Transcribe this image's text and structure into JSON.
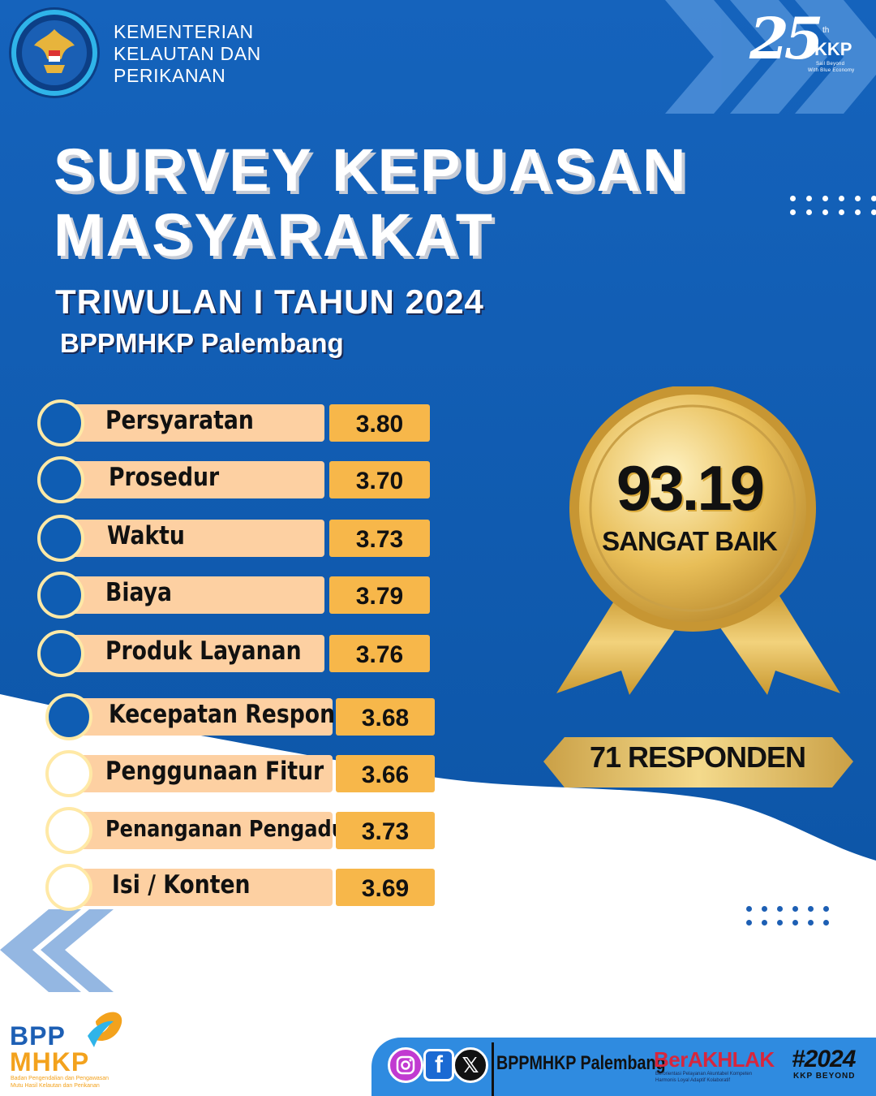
{
  "header": {
    "ministry_lines": [
      "KEMENTERIAN",
      "KELAUTAN DAN",
      "PERIKANAN"
    ],
    "anniversary": {
      "number": "25",
      "superscript": "th",
      "brand": "KKP",
      "tagline_1": "Sail Beyond",
      "tagline_2": "With Blue Economy"
    }
  },
  "title": {
    "line1": "SURVEY KEPUASAN",
    "line2": "MASYARAKAT",
    "subtitle": "TRIWULAN I TAHUN 2024",
    "unit": "BPPMHKP Palembang"
  },
  "indicators": [
    {
      "label": "Persyaratan",
      "score": "3.80"
    },
    {
      "label": "Prosedur",
      "score": "3.70"
    },
    {
      "label": "Waktu",
      "score": "3.73"
    },
    {
      "label": "Biaya",
      "score": "3.79"
    },
    {
      "label": "Produk Layanan",
      "score": "3.76"
    },
    {
      "label": "Kecepatan Respon",
      "score": "3.68"
    },
    {
      "label": "Penggunaan Fitur",
      "score": "3.66"
    },
    {
      "label": "Penanganan Pengaduan",
      "score": "3.73"
    },
    {
      "label": "Isi / Konten",
      "score": "3.69"
    }
  ],
  "result": {
    "index": "93.19",
    "category": "SANGAT BAIK",
    "respondents": "71 RESPONDEN"
  },
  "footer": {
    "bpp_top": "BPP",
    "bpp_bottom": "MHKP",
    "bpp_desc_1": "Badan Pengendalian dan Pengawasan",
    "bpp_desc_2": "Mutu Hasil Kelautan dan Perikanan",
    "social_icons": [
      "instagram-icon",
      "facebook-icon",
      "x-icon"
    ],
    "handle": "BPPMHKP Palembang",
    "berakhlak": "BerAKHLAK",
    "berakhlak_tag_1": "Berorientasi Pelayanan Akuntabel Kompeten",
    "berakhlak_tag_2": "Harmonis Loyal Adaptif Kolaboratif",
    "year": "#2024",
    "year_tag": "KKP BEYOND"
  },
  "colors": {
    "background_blue": "#0f5db3",
    "bar_peach": "#fdd0a2",
    "score_orange": "#f7b74a",
    "medal_gold": "#e6b94e",
    "footer_blue": "#2f8be0"
  }
}
